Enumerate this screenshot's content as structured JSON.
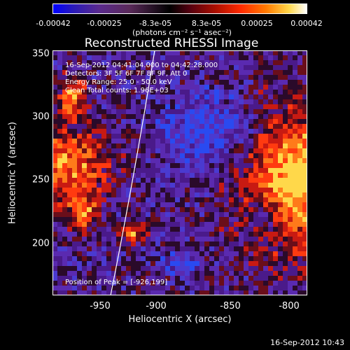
{
  "colorbar": {
    "ticks": [
      "-0.00042",
      "-0.00025",
      "-8.3e-05",
      "8.3e-05",
      "0.00025",
      "0.00042"
    ],
    "unit_label": "(photons cm⁻² s⁻¹ asec⁻²)"
  },
  "plot": {
    "title": "Reconstructed RHESSI Image",
    "info_lines": [
      "16-Sep-2012 04:41:04.000 to 04:42:28.000",
      "Detectors: 3F 5F 6F 7F 8F 9F, Att 0",
      "Energy Range: 25.0 - 50.0 keV",
      "Clean     Total counts: 1.96E+03"
    ],
    "peak_label": "Position of Peak = [-926,199]",
    "x_axis": {
      "label": "Heliocentric X (arcsec)",
      "ticks": [
        "-950",
        "-900",
        "-850",
        "-800"
      ]
    },
    "y_axis": {
      "label": "Heliocentric Y (arcsec)",
      "ticks": [
        "350",
        "300",
        "250",
        "200"
      ]
    }
  },
  "timestamp": "16-Sep-2012 10:43"
}
